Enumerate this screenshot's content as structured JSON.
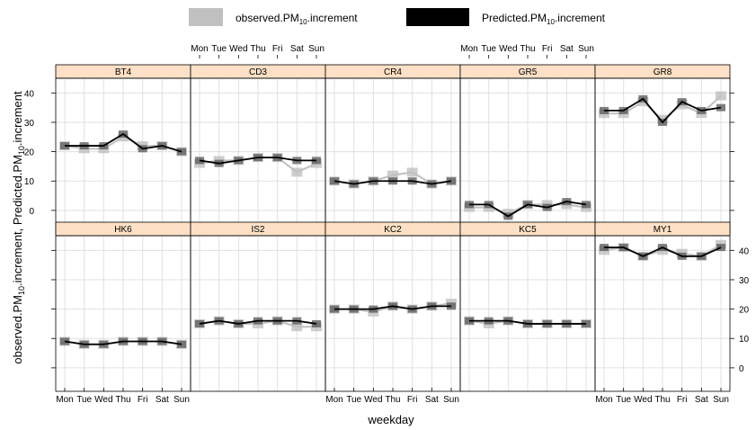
{
  "chart_data": {
    "type": "line",
    "layout": "lattice 5x2 panels",
    "xlabel": "weekday",
    "ylabel_parts": [
      "observed.PM",
      "10",
      ".increment, Predicted.PM",
      "10",
      ".increment"
    ],
    "legend": [
      {
        "name_parts": [
          "observed.PM",
          "10",
          ".increment"
        ],
        "color": "#c0c0c0"
      },
      {
        "name_parts": [
          "Predicted.PM",
          "10",
          ".increment"
        ],
        "color": "#000000"
      }
    ],
    "legend_position": "top",
    "categories": [
      "Mon",
      "Tue",
      "Wed",
      "Thu",
      "Fri",
      "Sat",
      "Sun"
    ],
    "ylim": [
      -8,
      45
    ],
    "yticks": [
      0,
      10,
      20,
      30,
      40
    ],
    "grid": true,
    "colors": {
      "strip": "#fde0c5",
      "observed": "#c0c0c0",
      "observed_box": "#b8b8b8",
      "predicted": "#000000",
      "predicted_box": "#555555",
      "grid": "#e0e0e0"
    },
    "panels": [
      {
        "name": "BT4",
        "observed": [
          22,
          21,
          21,
          25,
          22,
          22,
          20
        ],
        "predicted": [
          22,
          22,
          22,
          26,
          21,
          22,
          20
        ]
      },
      {
        "name": "CD3",
        "observed": [
          16,
          17,
          17,
          18,
          18,
          13,
          16
        ],
        "predicted": [
          17,
          16,
          17,
          18,
          18,
          17,
          17
        ]
      },
      {
        "name": "CR4",
        "observed": [
          10,
          9,
          10,
          12,
          13,
          9,
          10
        ],
        "predicted": [
          10,
          9,
          10,
          10,
          10,
          9,
          10
        ]
      },
      {
        "name": "GR5",
        "observed": [
          1,
          1,
          -1,
          2,
          2,
          2,
          1
        ],
        "predicted": [
          2,
          2,
          -2,
          2,
          1,
          3,
          2
        ]
      },
      {
        "name": "GR8",
        "observed": [
          33,
          33,
          37,
          31,
          36,
          33,
          39
        ],
        "predicted": [
          34,
          34,
          38,
          30,
          37,
          34,
          35
        ]
      },
      {
        "name": "HK6",
        "observed": [
          9,
          8,
          8,
          9,
          9,
          9,
          8
        ],
        "predicted": [
          9,
          8,
          8,
          9,
          9,
          9,
          8
        ]
      },
      {
        "name": "IS2",
        "observed": [
          15,
          16,
          15,
          15,
          16,
          14,
          14
        ],
        "predicted": [
          15,
          16,
          15,
          16,
          16,
          16,
          15
        ]
      },
      {
        "name": "KC2",
        "observed": [
          20,
          20,
          19,
          21,
          20,
          21,
          22
        ],
        "predicted": [
          20,
          20,
          20,
          21,
          20,
          21,
          21
        ]
      },
      {
        "name": "KC5",
        "observed": [
          16,
          15,
          16,
          15,
          15,
          15,
          15
        ],
        "predicted": [
          16,
          16,
          16,
          15,
          15,
          15,
          15
        ]
      },
      {
        "name": "MY1",
        "observed": [
          40,
          41,
          38,
          40,
          39,
          38,
          42
        ],
        "predicted": [
          41,
          41,
          38,
          41,
          38,
          38,
          41
        ]
      }
    ]
  }
}
